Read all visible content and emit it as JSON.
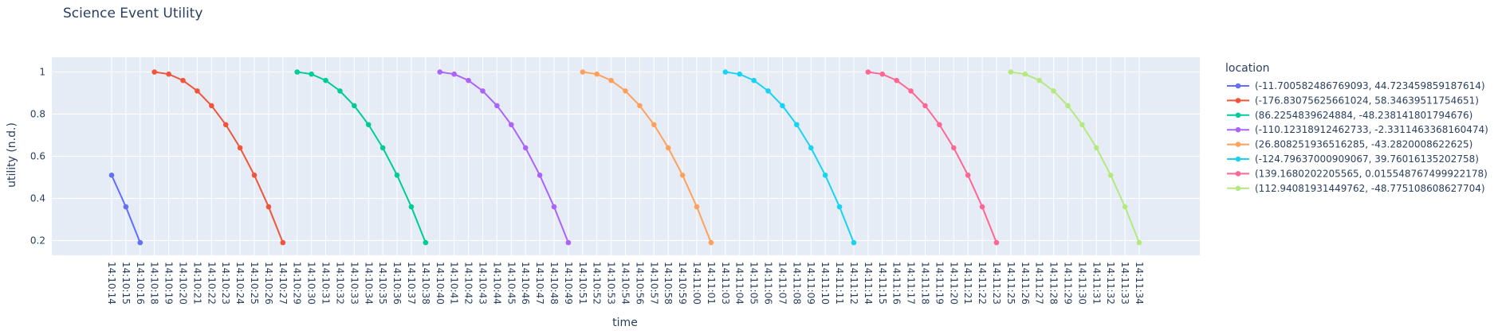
{
  "chart_data": {
    "type": "line",
    "title": "Science Event Utility",
    "xlabel": "time",
    "ylabel": "utility (n.d.)",
    "ylim": [
      0.13,
      1.07
    ],
    "yticks": [
      0.2,
      0.4,
      0.6,
      0.8,
      1
    ],
    "yticklabels": [
      "0.2",
      "0.4",
      "0.6",
      "0.8",
      "1"
    ],
    "grid": true,
    "legend_title": "location",
    "legend_position": "right",
    "x": [
      "14:10:14",
      "14:10:15",
      "14:10:16",
      "14:10:18",
      "14:10:19",
      "14:10:20",
      "14:10:21",
      "14:10:22",
      "14:10:23",
      "14:10:24",
      "14:10:25",
      "14:10:26",
      "14:10:27",
      "14:10:29",
      "14:10:30",
      "14:10:31",
      "14:10:32",
      "14:10:33",
      "14:10:34",
      "14:10:35",
      "14:10:36",
      "14:10:37",
      "14:10:38",
      "14:10:40",
      "14:10:41",
      "14:10:42",
      "14:10:43",
      "14:10:44",
      "14:10:45",
      "14:10:46",
      "14:10:47",
      "14:10:48",
      "14:10:49",
      "14:10:51",
      "14:10:52",
      "14:10:53",
      "14:10:54",
      "14:10:56",
      "14:10:57",
      "14:10:58",
      "14:10:59",
      "14:11:00",
      "14:11:01",
      "14:11:03",
      "14:11:04",
      "14:11:05",
      "14:11:06",
      "14:11:07",
      "14:11:08",
      "14:11:09",
      "14:11:10",
      "14:11:11",
      "14:11:12",
      "14:11:14",
      "14:11:15",
      "14:11:16",
      "14:11:17",
      "14:11:18",
      "14:11:19",
      "14:11:20",
      "14:11:21",
      "14:11:22",
      "14:11:23",
      "14:11:25",
      "14:11:26",
      "14:11:27",
      "14:11:28",
      "14:11:29",
      "14:11:30",
      "14:11:31",
      "14:11:32",
      "14:11:33",
      "14:11:34"
    ],
    "series": [
      {
        "name": "(-11.700582486769093, 44.723459859187614)",
        "color": "#636efa",
        "x": [
          "14:10:14",
          "14:10:15",
          "14:10:16"
        ],
        "values": [
          0.51,
          0.36,
          0.19
        ]
      },
      {
        "name": "(-176.83075625661024, 58.34639511754651)",
        "color": "#EF553B",
        "x": [
          "14:10:18",
          "14:10:19",
          "14:10:20",
          "14:10:21",
          "14:10:22",
          "14:10:23",
          "14:10:24",
          "14:10:25",
          "14:10:26",
          "14:10:27"
        ],
        "values": [
          1.0,
          0.99,
          0.96,
          0.91,
          0.84,
          0.75,
          0.64,
          0.51,
          0.36,
          0.19
        ]
      },
      {
        "name": "(86.2254839624884, -48.238141801794676)",
        "color": "#00cc96",
        "x": [
          "14:10:29",
          "14:10:30",
          "14:10:31",
          "14:10:32",
          "14:10:33",
          "14:10:34",
          "14:10:35",
          "14:10:36",
          "14:10:37",
          "14:10:38"
        ],
        "values": [
          1.0,
          0.99,
          0.96,
          0.91,
          0.84,
          0.75,
          0.64,
          0.51,
          0.36,
          0.19
        ]
      },
      {
        "name": "(-110.12318912462733, -2.3311463368160474)",
        "color": "#ab63fa",
        "x": [
          "14:10:40",
          "14:10:41",
          "14:10:42",
          "14:10:43",
          "14:10:44",
          "14:10:45",
          "14:10:46",
          "14:10:47",
          "14:10:48",
          "14:10:49"
        ],
        "values": [
          1.0,
          0.99,
          0.96,
          0.91,
          0.84,
          0.75,
          0.64,
          0.51,
          0.36,
          0.19
        ]
      },
      {
        "name": "(26.808251936516285, -43.2820008622625)",
        "color": "#FFA15A",
        "x": [
          "14:10:51",
          "14:10:52",
          "14:10:53",
          "14:10:54",
          "14:10:56",
          "14:10:57",
          "14:10:58",
          "14:10:59",
          "14:11:00",
          "14:11:01"
        ],
        "values": [
          1.0,
          0.99,
          0.96,
          0.91,
          0.84,
          0.75,
          0.64,
          0.51,
          0.36,
          0.19
        ]
      },
      {
        "name": "(-124.79637000909067, 39.76016135202758)",
        "color": "#19d3f3",
        "x": [
          "14:11:03",
          "14:11:04",
          "14:11:05",
          "14:11:06",
          "14:11:07",
          "14:11:08",
          "14:11:09",
          "14:11:10",
          "14:11:11",
          "14:11:12"
        ],
        "values": [
          1.0,
          0.99,
          0.96,
          0.91,
          0.84,
          0.75,
          0.64,
          0.51,
          0.36,
          0.19
        ]
      },
      {
        "name": "(139.1680202205565, 0.015548767499922178)",
        "color": "#FF6692",
        "x": [
          "14:11:14",
          "14:11:15",
          "14:11:16",
          "14:11:17",
          "14:11:18",
          "14:11:19",
          "14:11:20",
          "14:11:21",
          "14:11:22",
          "14:11:23"
        ],
        "values": [
          1.0,
          0.99,
          0.96,
          0.91,
          0.84,
          0.75,
          0.64,
          0.51,
          0.36,
          0.19
        ]
      },
      {
        "name": "(112.94081931449762, -48.775108608627704)",
        "color": "#B6E880",
        "x": [
          "14:11:25",
          "14:11:26",
          "14:11:27",
          "14:11:28",
          "14:11:29",
          "14:11:30",
          "14:11:31",
          "14:11:32",
          "14:11:33",
          "14:11:34"
        ],
        "values": [
          1.0,
          0.99,
          0.96,
          0.91,
          0.84,
          0.75,
          0.64,
          0.51,
          0.36,
          0.19
        ]
      }
    ],
    "colors": {
      "plot_bg": "#e5ecf6",
      "grid": "#ffffff",
      "text": "#2a3f5f"
    }
  }
}
